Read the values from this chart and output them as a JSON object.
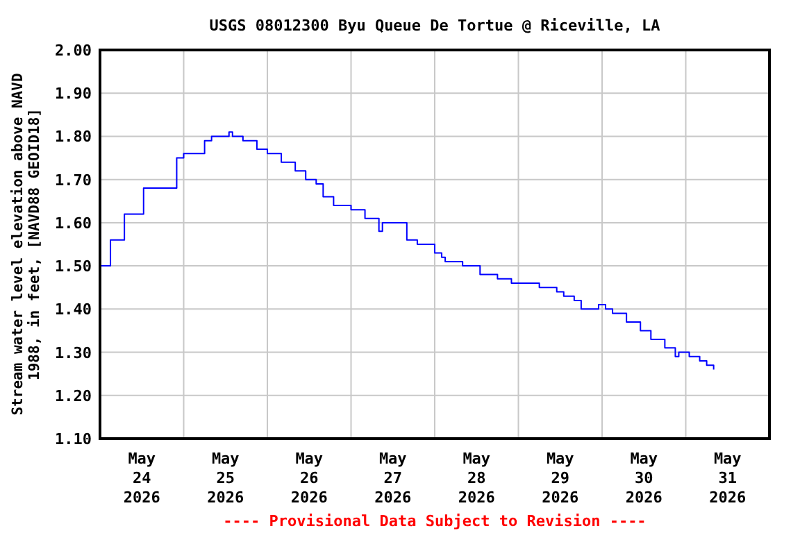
{
  "chart_data": {
    "type": "step",
    "title": "USGS 08012300 Byu Queue De Tortue @ Riceville, LA",
    "ylabel": "Stream water level elevation above NAVD 1988, in feet, [NAVD88 GEOID18]",
    "annotations": [
      "---- Provisional Data Subject to Revision ----"
    ],
    "x": [
      "2026-05-24T00:00",
      "2026-05-24T03:00",
      "2026-05-24T07:00",
      "2026-05-24T12:30",
      "2026-05-24T22:00",
      "2026-05-25T00:00",
      "2026-05-25T06:00",
      "2026-05-25T08:00",
      "2026-05-25T13:00",
      "2026-05-25T14:00",
      "2026-05-25T17:00",
      "2026-05-25T21:00",
      "2026-05-26T00:00",
      "2026-05-26T04:00",
      "2026-05-26T08:00",
      "2026-05-26T11:00",
      "2026-05-26T14:00",
      "2026-05-26T16:00",
      "2026-05-26T19:00",
      "2026-05-27T00:00",
      "2026-05-27T04:00",
      "2026-05-27T08:00",
      "2026-05-27T09:00",
      "2026-05-27T12:00",
      "2026-05-27T16:00",
      "2026-05-27T19:00",
      "2026-05-28T00:00",
      "2026-05-28T02:00",
      "2026-05-28T03:00",
      "2026-05-28T08:00",
      "2026-05-28T13:00",
      "2026-05-28T18:00",
      "2026-05-28T22:00",
      "2026-05-29T06:00",
      "2026-05-29T11:00",
      "2026-05-29T13:00",
      "2026-05-29T16:00",
      "2026-05-29T18:00",
      "2026-05-29T23:00",
      "2026-05-30T01:00",
      "2026-05-30T03:00",
      "2026-05-30T07:00",
      "2026-05-30T11:00",
      "2026-05-30T14:00",
      "2026-05-30T18:00",
      "2026-05-30T21:00",
      "2026-05-30T22:00",
      "2026-05-31T01:00",
      "2026-05-31T04:00",
      "2026-05-31T06:00",
      "2026-05-31T08:00"
    ],
    "series": [
      {
        "color": "#0000ff",
        "values": [
          1.5,
          1.56,
          1.62,
          1.68,
          1.75,
          1.76,
          1.79,
          1.8,
          1.81,
          1.8,
          1.79,
          1.77,
          1.76,
          1.74,
          1.72,
          1.7,
          1.69,
          1.66,
          1.64,
          1.63,
          1.61,
          1.58,
          1.6,
          1.6,
          1.56,
          1.55,
          1.53,
          1.52,
          1.51,
          1.5,
          1.48,
          1.47,
          1.46,
          1.45,
          1.44,
          1.43,
          1.42,
          1.4,
          1.41,
          1.4,
          1.39,
          1.37,
          1.35,
          1.33,
          1.31,
          1.29,
          1.3,
          1.29,
          1.28,
          1.27,
          1.26
        ]
      }
    ],
    "xlim": [
      "2026-05-24T00:00",
      "2026-06-01T00:00"
    ],
    "xticks": [
      {
        "value": "2026-05-24T12:00",
        "label": "May\n24\n2026"
      },
      {
        "value": "2026-05-25T00:00",
        "label": null
      },
      {
        "value": "2026-05-25T12:00",
        "label": "May\n25\n2026"
      },
      {
        "value": "2026-05-26T00:00",
        "label": null
      },
      {
        "value": "2026-05-26T12:00",
        "label": "May\n26\n2026"
      },
      {
        "value": "2026-05-27T00:00",
        "label": null
      },
      {
        "value": "2026-05-27T12:00",
        "label": "May\n27\n2026"
      },
      {
        "value": "2026-05-28T00:00",
        "label": null
      },
      {
        "value": "2026-05-28T12:00",
        "label": "May\n28\n2026"
      },
      {
        "value": "2026-05-29T00:00",
        "label": null
      },
      {
        "value": "2026-05-29T12:00",
        "label": "May\n29\n2026"
      },
      {
        "value": "2026-05-30T00:00",
        "label": null
      },
      {
        "value": "2026-05-30T12:00",
        "label": "May\n30\n2026"
      },
      {
        "value": "2026-05-31T00:00",
        "label": null
      },
      {
        "value": "2026-05-31T12:00",
        "label": "May\n31\n2026"
      }
    ],
    "ylim": [
      1.1,
      2.0
    ],
    "yticks": [
      {
        "value": 1.1,
        "label": "1.10"
      },
      {
        "value": 1.2,
        "label": "1.20"
      },
      {
        "value": 1.3,
        "label": "1.30"
      },
      {
        "value": 1.4,
        "label": "1.40"
      },
      {
        "value": 1.5,
        "label": "1.50"
      },
      {
        "value": 1.6,
        "label": "1.60"
      },
      {
        "value": 1.7,
        "label": "1.70"
      },
      {
        "value": 1.8,
        "label": "1.80"
      },
      {
        "value": 1.9,
        "label": "1.90"
      },
      {
        "value": 2.0,
        "label": "2.00"
      }
    ],
    "grid": true
  }
}
